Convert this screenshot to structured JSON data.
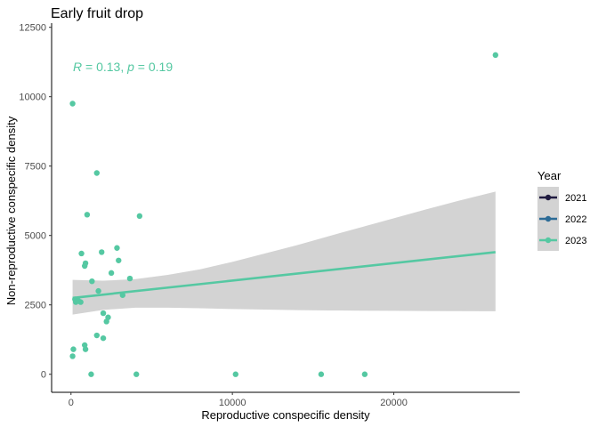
{
  "chart_data": {
    "type": "scatter",
    "title": "Early fruit drop",
    "xlabel": "Reproductive conspecific density",
    "ylabel": "Non-reproductive conspecific density",
    "xlim": [
      -1200,
      27800
    ],
    "ylim": [
      -650,
      12650
    ],
    "x_ticks": [
      0,
      10000,
      20000
    ],
    "y_ticks": [
      0,
      2500,
      5000,
      7500,
      10000,
      12500
    ],
    "grid": false,
    "legend": {
      "title": "Year",
      "position": "right",
      "entries": [
        {
          "label": "2021",
          "color": "#1f1b40"
        },
        {
          "label": "2022",
          "color": "#2c6b96"
        },
        {
          "label": "2023",
          "color": "#55c8a2"
        }
      ]
    },
    "annotation": {
      "r_label": "R",
      "r_text": " = 0.13, ",
      "p_label": "p",
      "p_text": " = 0.19",
      "x": 0,
      "y": 11000,
      "color": "#55c8a2"
    },
    "series": [
      {
        "name": "2023",
        "color": "#55c8a2",
        "points": [
          [
            100,
            9750
          ],
          [
            100,
            650
          ],
          [
            150,
            900
          ],
          [
            250,
            2700
          ],
          [
            300,
            2600
          ],
          [
            450,
            2650
          ],
          [
            600,
            2600
          ],
          [
            650,
            4350
          ],
          [
            850,
            3900
          ],
          [
            900,
            4000
          ],
          [
            850,
            1050
          ],
          [
            900,
            900
          ],
          [
            1000,
            5750
          ],
          [
            1250,
            0
          ],
          [
            1300,
            3350
          ],
          [
            1600,
            1400
          ],
          [
            1600,
            7250
          ],
          [
            1700,
            3000
          ],
          [
            1900,
            4400
          ],
          [
            2000,
            2200
          ],
          [
            2000,
            1300
          ],
          [
            2200,
            1900
          ],
          [
            2300,
            2050
          ],
          [
            2500,
            3650
          ],
          [
            2850,
            4550
          ],
          [
            2950,
            4100
          ],
          [
            3200,
            2850
          ],
          [
            3650,
            3450
          ],
          [
            4050,
            0
          ],
          [
            4250,
            5700
          ],
          [
            10200,
            0
          ],
          [
            15500,
            0
          ],
          [
            18200,
            0
          ],
          [
            26300,
            11500
          ]
        ]
      }
    ],
    "fit": {
      "color": "#55c8a2",
      "band_color": "#d3d3d3",
      "line": [
        [
          100,
          2750
        ],
        [
          26300,
          4400
        ]
      ],
      "band": [
        {
          "x": 100,
          "lo": 2150,
          "hi": 3400
        },
        {
          "x": 2000,
          "lo": 2320,
          "hi": 3370
        },
        {
          "x": 4000,
          "lo": 2400,
          "hi": 3430
        },
        {
          "x": 6000,
          "lo": 2400,
          "hi": 3580
        },
        {
          "x": 8000,
          "lo": 2380,
          "hi": 3780
        },
        {
          "x": 10000,
          "lo": 2350,
          "hi": 4050
        },
        {
          "x": 12000,
          "lo": 2330,
          "hi": 4350
        },
        {
          "x": 14000,
          "lo": 2310,
          "hi": 4650
        },
        {
          "x": 16000,
          "lo": 2300,
          "hi": 4980
        },
        {
          "x": 18000,
          "lo": 2290,
          "hi": 5300
        },
        {
          "x": 20000,
          "lo": 2285,
          "hi": 5620
        },
        {
          "x": 22000,
          "lo": 2280,
          "hi": 5940
        },
        {
          "x": 24000,
          "lo": 2275,
          "hi": 6250
        },
        {
          "x": 26300,
          "lo": 2270,
          "hi": 6580
        }
      ]
    }
  }
}
